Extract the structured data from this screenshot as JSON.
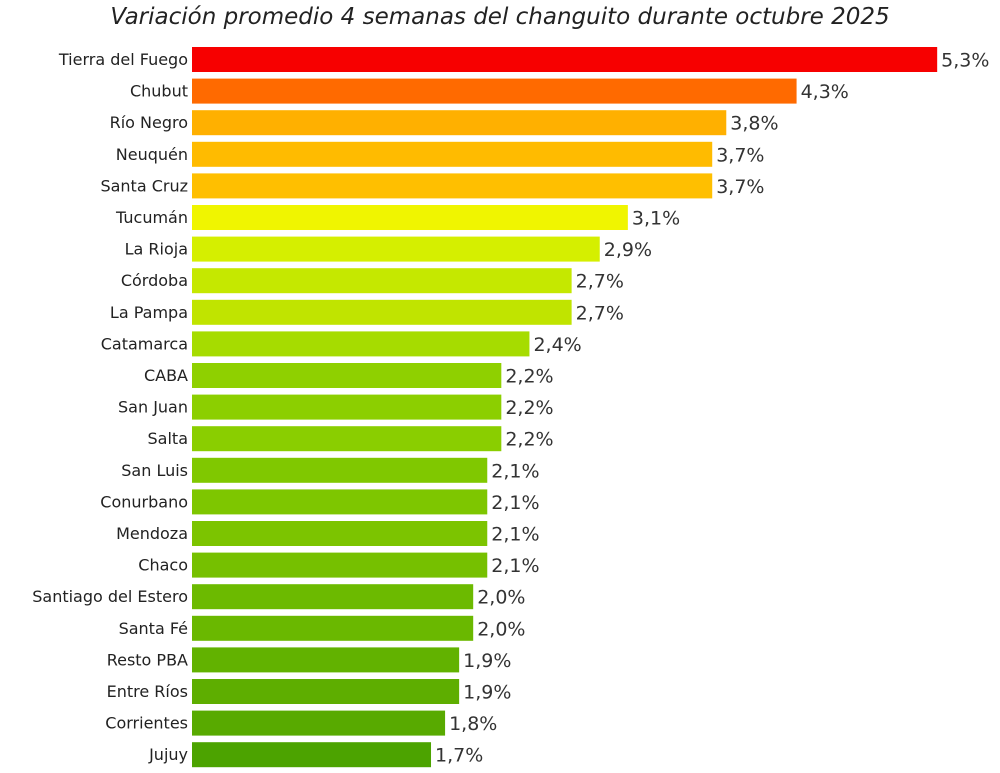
{
  "chart_data": {
    "type": "bar",
    "orientation": "horizontal",
    "title": "Variación promedio 4 semanas del changuito durante octubre 2025",
    "xlabel": "",
    "ylabel": "",
    "grid": false,
    "legend": "none",
    "categories": [
      "Tierra del Fuego",
      "Chubut",
      "Río Negro",
      "Neuquén",
      "Santa Cruz",
      "Tucumán",
      "La Rioja",
      "Córdoba",
      "La Pampa",
      "Catamarca",
      "CABA",
      "San Juan",
      "Salta",
      "San Luis",
      "Conurbano",
      "Mendoza",
      "Chaco",
      "Santiago del Estero",
      "Santa Fé",
      "Resto PBA",
      "Entre Ríos",
      "Corrientes",
      "Jujuy"
    ],
    "values": [
      5.3,
      4.3,
      3.8,
      3.7,
      3.7,
      3.1,
      2.9,
      2.7,
      2.7,
      2.4,
      2.2,
      2.2,
      2.2,
      2.1,
      2.1,
      2.1,
      2.1,
      2.0,
      2.0,
      1.9,
      1.9,
      1.8,
      1.7
    ],
    "value_labels": [
      "5,3%",
      "4,3%",
      "3,8%",
      "3,7%",
      "3,7%",
      "3,1%",
      "2,9%",
      "2,7%",
      "2,7%",
      "2,4%",
      "2,2%",
      "2,2%",
      "2,2%",
      "2,1%",
      "2,1%",
      "2,1%",
      "2,1%",
      "2,0%",
      "2,0%",
      "1,9%",
      "1,9%",
      "1,8%",
      "1,7%"
    ],
    "colors": [
      "#f70000",
      "#ff6a00",
      "#ffb000",
      "#ffbb00",
      "#ffbf00",
      "#f0f500",
      "#d5ef00",
      "#c5e800",
      "#c0e400",
      "#a6dc00",
      "#8fd000",
      "#8ccf00",
      "#8ace00",
      "#80c800",
      "#7ec600",
      "#7cc400",
      "#76c000",
      "#6cba00",
      "#6ab800",
      "#62b200",
      "#5eae00",
      "#58aa00",
      "#4ca300"
    ]
  }
}
